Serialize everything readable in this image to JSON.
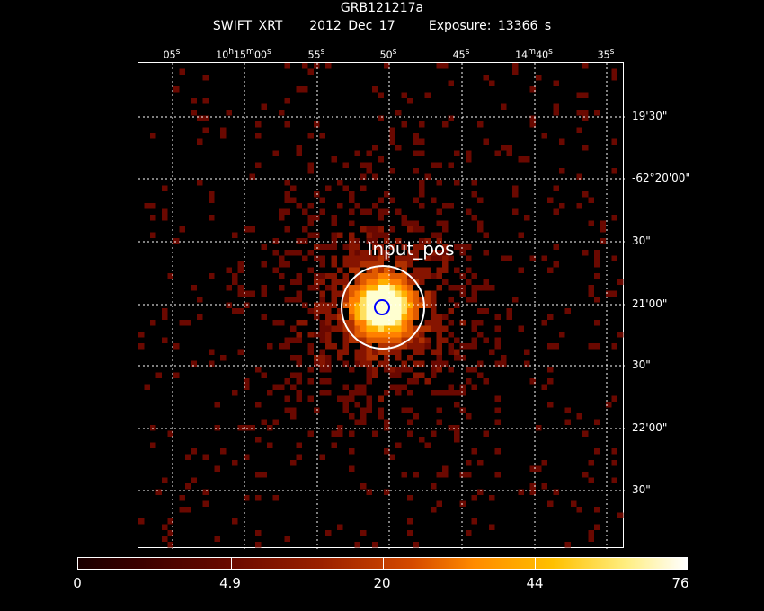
{
  "title": "GRB121217a",
  "subtitle": {
    "instrument": "SWIFT XRT",
    "date": "2012 Dec 17",
    "exposure": "Exposure: 13366 s"
  },
  "ra_ticks": [
    "05s",
    "10h15m00s",
    "55s",
    "50s",
    "45s",
    "14m40s",
    "35s"
  ],
  "dec_ticks": [
    "19'30\"",
    "-62°20'00\"",
    "30\"",
    "21'00\"",
    "30\"",
    "22'00\"",
    "30\""
  ],
  "region_label": "Input_pos",
  "colorbar": {
    "tick_labels": [
      "0",
      "4.9",
      "20",
      "44",
      "76"
    ],
    "min": 0,
    "max": 76
  },
  "colors": {
    "background": "#000000",
    "grid": "#ffffff",
    "region_circle": "#ffffff",
    "inner_circle": "#0000ff"
  }
}
